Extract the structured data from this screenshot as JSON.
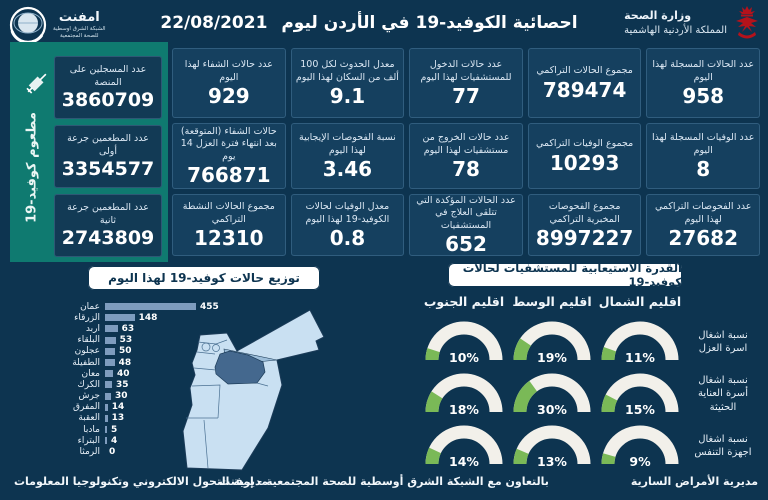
{
  "header": {
    "title": "احصائية الكوفيد-19 في الأردن ليوم",
    "date": "22/08/2021",
    "ministry_line1": "وزارة الصحة",
    "ministry_line2": "المملكة الأردنية الهاشمية",
    "emphnet_name": "امفنت",
    "emphnet_sub1": "الشبكة الشرق اوسطية",
    "emphnet_sub2": "للصحة المجتمعية"
  },
  "vaccination": {
    "vertical_label": "مطعوم كوفيد-19",
    "stats": [
      {
        "label": "عدد المسجلين على المنصة",
        "value": "3860709"
      },
      {
        "label": "عدد المطعمين جرعة أولى",
        "value": "3354577"
      },
      {
        "label": "عدد المطعمين جرعة ثانية",
        "value": "2743809"
      }
    ]
  },
  "stats": [
    {
      "label": "عدد الحالات المسجلة لهذا اليوم",
      "value": "958"
    },
    {
      "label": "مجموع الحالات التراكمي",
      "value": "789474"
    },
    {
      "label": "عدد حالات الدخول للمستشفيات لهذا اليوم",
      "value": "77"
    },
    {
      "label": "معدل الحدوث لكل 100 ألف من السكان لهذا اليوم",
      "value": "9.1"
    },
    {
      "label": "عدد حالات الشفاء لهذا اليوم",
      "value": "929"
    },
    {
      "label": "عدد الوفيات المسجلة لهذا اليوم",
      "value": "8"
    },
    {
      "label": "مجموع الوفيات التراكمي",
      "value": "10293"
    },
    {
      "label": "عدد حالات الخروج من مستشفيات لهذا اليوم",
      "value": "78"
    },
    {
      "label": "نسبة الفحوصات الإيجابية لهذا اليوم",
      "value": "3.46"
    },
    {
      "label": "حالات الشفاء (المتوقعة) بعد انتهاء فترة العزل 14 يوم",
      "value": "766871"
    },
    {
      "label": "عدد الفحوصات التراكمي لهذا اليوم",
      "value": "27682"
    },
    {
      "label": "مجموع الفحوصات المخبرية التراكمي",
      "value": "8997227"
    },
    {
      "label": "عدد الحالات المؤكدة التي تتلقى العلاج في المستشفيات",
      "value": "652"
    },
    {
      "label": "معدل الوفيات لحالات الكوفيد-19 لهذا اليوم",
      "value": "0.8"
    },
    {
      "label": "مجموع الحالات النشطة التراكمي",
      "value": "12310"
    }
  ],
  "chart_data": [
    {
      "type": "bar",
      "orientation": "horizontal",
      "title": "توزيع حالات كوفيد-19 لهذا اليوم",
      "categories": [
        "عمان",
        "الزرقاء",
        "اربد",
        "البلقاء",
        "عجلون",
        "الطفيلة",
        "معان",
        "الكرك",
        "جرش",
        "المفرق",
        "العقبة",
        "مادبا",
        "البتراء",
        "الرمثا"
      ],
      "values": [
        455,
        148,
        63,
        53,
        50,
        48,
        40,
        35,
        30,
        14,
        13,
        5,
        4,
        0
      ],
      "xlim": [
        0,
        500
      ],
      "bar_color": "#7e9cbe"
    },
    {
      "type": "gauge",
      "title": "القدرة الاستيعابية للمستشفيات لحالات كوفيد-19",
      "unit": "%",
      "columns": [
        "اقليم الشمال",
        "اقليم الوسط",
        "اقليم الجنوب"
      ],
      "rows": [
        {
          "label": "نسبة اشغال اسرة العزل",
          "values": [
            11,
            19,
            10
          ]
        },
        {
          "label": "نسبة اشغال أسرة العناية الحثيثة",
          "values": [
            15,
            30,
            18
          ]
        },
        {
          "label": "نسبة اشغال اجهزة التنفس",
          "values": [
            9,
            13,
            14
          ]
        }
      ],
      "track_color": "#f2f0ea",
      "fill_color": "#7ab957"
    }
  ],
  "map": {
    "highlight": {
      "dark_region": "عمان",
      "medium_region": "الزرقاء"
    },
    "colors": {
      "light": "#c9e0f2",
      "medium": "#9dbeda",
      "dark": "#44688e"
    }
  },
  "footer": {
    "right": "مديرية الأمراض السارية",
    "center": "بالتعاون مع الشبكة الشرق أوسطية للصحة المجتمعية - إمفنت",
    "left": "مديرية التحول الالكتروني وتكنولوجيا المعلومات"
  },
  "colors": {
    "background": "#0d3450",
    "box": "#15405f",
    "sidebar_green": "#0f7a70",
    "gauge_green": "#7ab957",
    "bar": "#7e9cbe",
    "emblem_red": "#b5121b"
  }
}
